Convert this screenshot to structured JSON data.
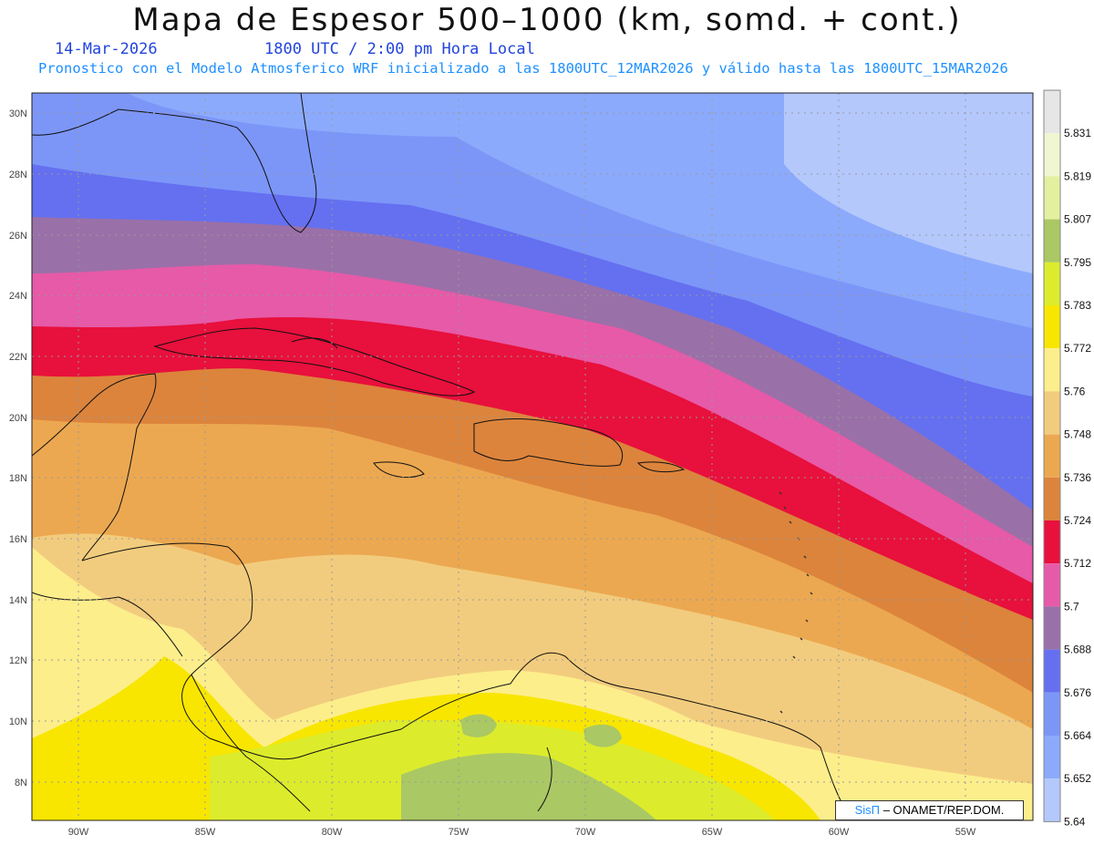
{
  "header": {
    "title": "Mapa de Espesor 500–1000 (km, somd. + cont.)",
    "date": "14-Mar-2026",
    "time": "1800 UTC / 2:00 pm Hora Local",
    "forecast_line": "Pronostico con el Modelo Atmosferico WRF inicializado a las 1800UTC_12MAR2026 y válido hasta las  1800UTC_15MAR2026"
  },
  "axes": {
    "lat_labels": [
      "30N",
      "28N",
      "26N",
      "24N",
      "22N",
      "20N",
      "18N",
      "16N",
      "14N",
      "12N",
      "10N",
      "8N"
    ],
    "lon_labels": [
      "90W",
      "85W",
      "80W",
      "75W",
      "70W",
      "65W",
      "60W",
      "55W"
    ]
  },
  "legend": {
    "levels": [
      "5.831",
      "5.819",
      "5.807",
      "5.795",
      "5.783",
      "5.772",
      "5.76",
      "5.748",
      "5.736",
      "5.724",
      "5.712",
      "5.7",
      "5.688",
      "5.676",
      "5.664",
      "5.652",
      "5.64"
    ],
    "colors": [
      "#e6e6e6",
      "#f0f5d2",
      "#e2f0a0",
      "#aac864",
      "#dcec2c",
      "#f8e600",
      "#fdee8c",
      "#f2cc7e",
      "#eca850",
      "#dc843c",
      "#e8103c",
      "#e65aa8",
      "#9a70a8",
      "#6470f0",
      "#7c96f8",
      "#8caafc",
      "#b4c8fc"
    ]
  },
  "credit": {
    "brand": "SisΠ",
    "org": " – ONAMET/REP.DOM."
  }
}
